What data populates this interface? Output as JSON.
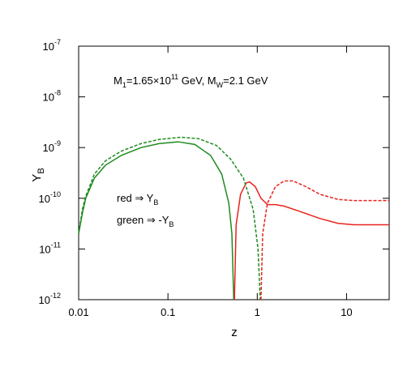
{
  "chart_data": {
    "type": "line",
    "xlabel": "z",
    "ylabel": [
      "Y",
      "B"
    ],
    "annotation": [
      "M",
      "1",
      "=1.65×10",
      "11",
      " GeV, M",
      "W",
      "=2.1 GeV"
    ],
    "legend_texts": [
      [
        "red ⇒ Y",
        "B"
      ],
      [
        "green ⇒ -Y",
        "B"
      ]
    ],
    "xlog": true,
    "ylog": true,
    "xlim": [
      0.01,
      30
    ],
    "ylim": [
      1e-12,
      1e-07
    ],
    "xticks": [
      0.01,
      0.1,
      1,
      10
    ],
    "yticks": [
      {
        "value": 1e-12,
        "label": "10",
        "exponent": "-12"
      },
      {
        "value": 1e-11,
        "label": "10",
        "exponent": "-11"
      },
      {
        "value": 1e-10,
        "label": "10",
        "exponent": "-10"
      },
      {
        "value": 1e-09,
        "label": "10",
        "exponent": "-9"
      },
      {
        "value": 1e-08,
        "label": "10",
        "exponent": "-8"
      },
      {
        "value": 1e-07,
        "label": "10",
        "exponent": "-7"
      }
    ],
    "series": [
      {
        "color": "#1f8a1f",
        "style": "solid",
        "x": [
          0.01,
          0.011,
          0.012,
          0.015,
          0.02,
          0.03,
          0.05,
          0.08,
          0.13,
          0.2,
          0.3,
          0.4,
          0.48,
          0.52,
          0.545
        ],
        "values": [
          2e-11,
          5e-11,
          1e-10,
          2.5e-10,
          4.5e-10,
          7e-10,
          1e-09,
          1.2e-09,
          1.3e-09,
          1.15e-09,
          7e-10,
          3e-10,
          8e-11,
          2e-11,
          1e-12
        ]
      },
      {
        "color": "#e8231c",
        "style": "solid",
        "x": [
          0.555,
          0.58,
          0.65,
          0.75,
          0.82,
          0.95,
          1.1,
          1.3,
          1.6,
          2,
          3,
          5,
          8,
          12,
          30
        ],
        "values": [
          1e-12,
          3e-11,
          1.2e-10,
          2e-10,
          2.1e-10,
          1.7e-10,
          1e-10,
          7.5e-11,
          7.5e-11,
          7e-11,
          5.5e-11,
          4e-11,
          3.2e-11,
          3e-11,
          3e-11
        ]
      },
      {
        "color": "#1f8a1f",
        "style": "dashed",
        "x": [
          0.01,
          0.011,
          0.012,
          0.015,
          0.02,
          0.03,
          0.05,
          0.08,
          0.14,
          0.22,
          0.35,
          0.5,
          0.7,
          0.9,
          1.02,
          1.08
        ],
        "values": [
          2e-11,
          6e-11,
          1.1e-10,
          3e-10,
          5.5e-10,
          8.5e-10,
          1.2e-09,
          1.45e-09,
          1.6e-09,
          1.5e-09,
          1.1e-09,
          6e-10,
          2.5e-10,
          6e-11,
          1e-11,
          1e-12
        ]
      },
      {
        "color": "#e8231c",
        "style": "dashed",
        "x": [
          1.1,
          1.15,
          1.3,
          1.6,
          2,
          2.5,
          3.5,
          5,
          8,
          12,
          30
        ],
        "values": [
          1e-12,
          2e-11,
          8e-11,
          1.7e-10,
          2.2e-10,
          2.2e-10,
          1.7e-10,
          1.2e-10,
          9.5e-11,
          9e-11,
          9e-11
        ]
      }
    ]
  }
}
